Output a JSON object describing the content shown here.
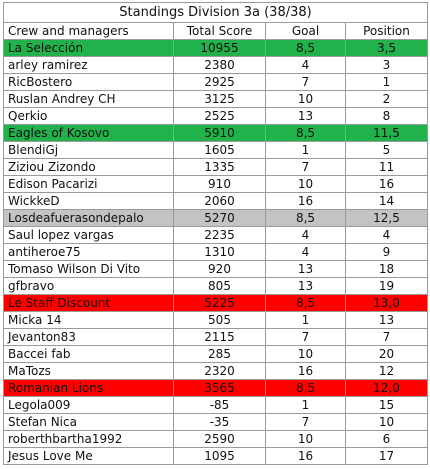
{
  "table": {
    "title": "Standings Division 3a (38/38)",
    "header": [
      "Crew and managers",
      "Total Score",
      "Goal",
      "Position"
    ],
    "rows": [
      {
        "cells": [
          "La Selección",
          "10955",
          "8,5",
          "3,5"
        ],
        "color": "#22b24c"
      },
      {
        "cells": [
          "arley ramirez",
          "2380",
          "4",
          "3"
        ]
      },
      {
        "cells": [
          "RicBostero",
          "2925",
          "7",
          "1"
        ]
      },
      {
        "cells": [
          "Ruslan Andrey CH",
          "3125",
          "10",
          "2"
        ]
      },
      {
        "cells": [
          "Qerkio",
          "2525",
          "13",
          "8"
        ]
      },
      {
        "cells": [
          "Eagles of Kosovo",
          "5910",
          "8,5",
          "11,5"
        ],
        "color": "#22b24c"
      },
      {
        "cells": [
          "BlendiGj",
          "1605",
          "1",
          "5"
        ]
      },
      {
        "cells": [
          "Ziziou Zizondo",
          "1335",
          "7",
          "11"
        ]
      },
      {
        "cells": [
          "Edison Pacarizi",
          "910",
          "10",
          "16"
        ]
      },
      {
        "cells": [
          "WickkeD",
          "2060",
          "16",
          "14"
        ]
      },
      {
        "cells": [
          "Losdeafuerasondepalo",
          "5270",
          "8,5",
          "12,5"
        ],
        "color": "#c3c3c3"
      },
      {
        "cells": [
          "Saul lopez vargas",
          "2235",
          "4",
          "4"
        ]
      },
      {
        "cells": [
          "antiheroe75",
          "1310",
          "4",
          "9"
        ]
      },
      {
        "cells": [
          "Tomaso Wilson Di Vito",
          "920",
          "13",
          "18"
        ]
      },
      {
        "cells": [
          "gfbravo",
          "805",
          "13",
          "19"
        ]
      },
      {
        "cells": [
          "Le Staff Discount",
          "5225",
          "8,5",
          "13,0"
        ],
        "color": "#ff0000"
      },
      {
        "cells": [
          "Micka 14",
          "505",
          "1",
          "13"
        ]
      },
      {
        "cells": [
          "Jevanton83",
          "2115",
          "7",
          "7"
        ]
      },
      {
        "cells": [
          "Baccei fab",
          "285",
          "10",
          "20"
        ]
      },
      {
        "cells": [
          "MaTozs",
          "2320",
          "16",
          "12"
        ]
      },
      {
        "cells": [
          "Romanian Lions",
          "3565",
          "8,5",
          "12,0"
        ],
        "color": "#ff0000"
      },
      {
        "cells": [
          "Legola009",
          "-85",
          "1",
          "15"
        ]
      },
      {
        "cells": [
          "Stefan Nica",
          "-35",
          "7",
          "10"
        ]
      },
      {
        "cells": [
          "roberthbartha1992",
          "2590",
          "10",
          "6"
        ]
      },
      {
        "cells": [
          "Jesus Love Me",
          "1095",
          "16",
          "17"
        ]
      }
    ]
  }
}
